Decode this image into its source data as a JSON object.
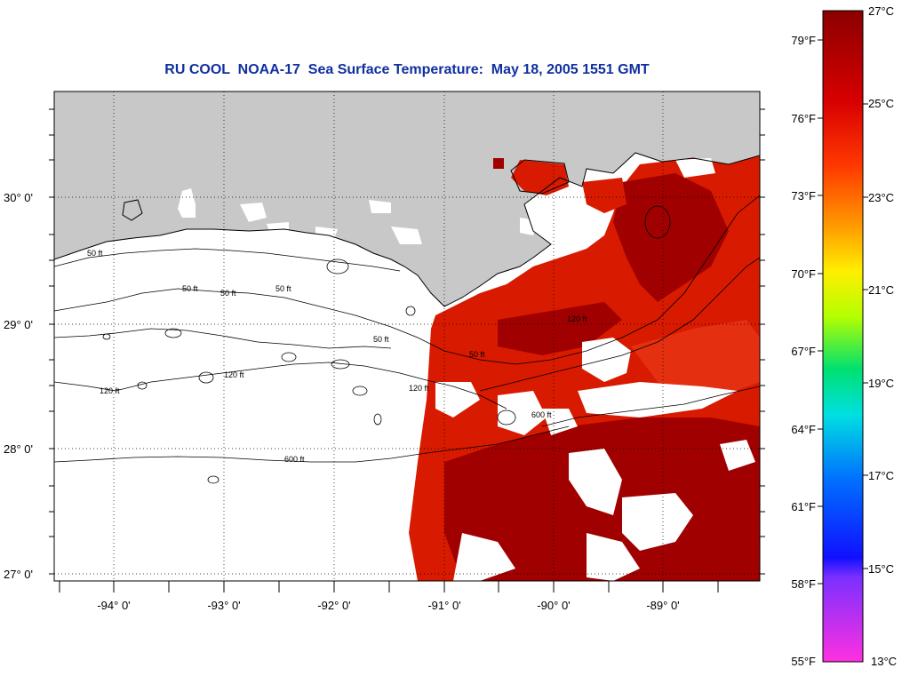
{
  "title": "RU COOL  NOAA-17  Sea Surface Temperature:  May 18, 2005 1551 GMT",
  "lat_labels": [
    "30° 0'",
    "29° 0'",
    "28° 0'",
    "27° 0'"
  ],
  "lon_labels": [
    "-94° 0'",
    "-93° 0'",
    "-92° 0'",
    "-91° 0'",
    "-90° 0'",
    "-89° 0'"
  ],
  "colorbar": {
    "fahrenheit": [
      "79°F",
      "76°F",
      "73°F",
      "70°F",
      "67°F",
      "64°F",
      "61°F",
      "58°F",
      "55°F"
    ],
    "celsius": [
      "27°C",
      "25°C",
      "23°C",
      "21°C",
      "19°C",
      "17°C",
      "15°C",
      "13°C"
    ]
  },
  "contour_labels": [
    "50 ft",
    "50 ft",
    "50 ft",
    "50 ft",
    "50 ft",
    "50 ft",
    "120 ft",
    "120 ft",
    "120 ft",
    "120 ft",
    "600 ft",
    "600 ft"
  ],
  "colors": {
    "land": "#c8c8c8",
    "sst_hot": "#a00000",
    "sst_warm": "#d81a00",
    "title": "#1030a0"
  }
}
